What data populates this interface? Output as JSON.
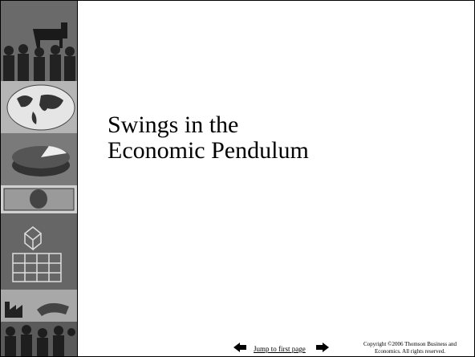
{
  "slide": {
    "title_lines": [
      "Swings in the",
      "Economic Pendulum"
    ],
    "footer": {
      "link": "Jump to first page",
      "copyright_lines": [
        "Copyright ©2006  Thomson Business and",
        "Economics. All rights reserved."
      ]
    }
  }
}
